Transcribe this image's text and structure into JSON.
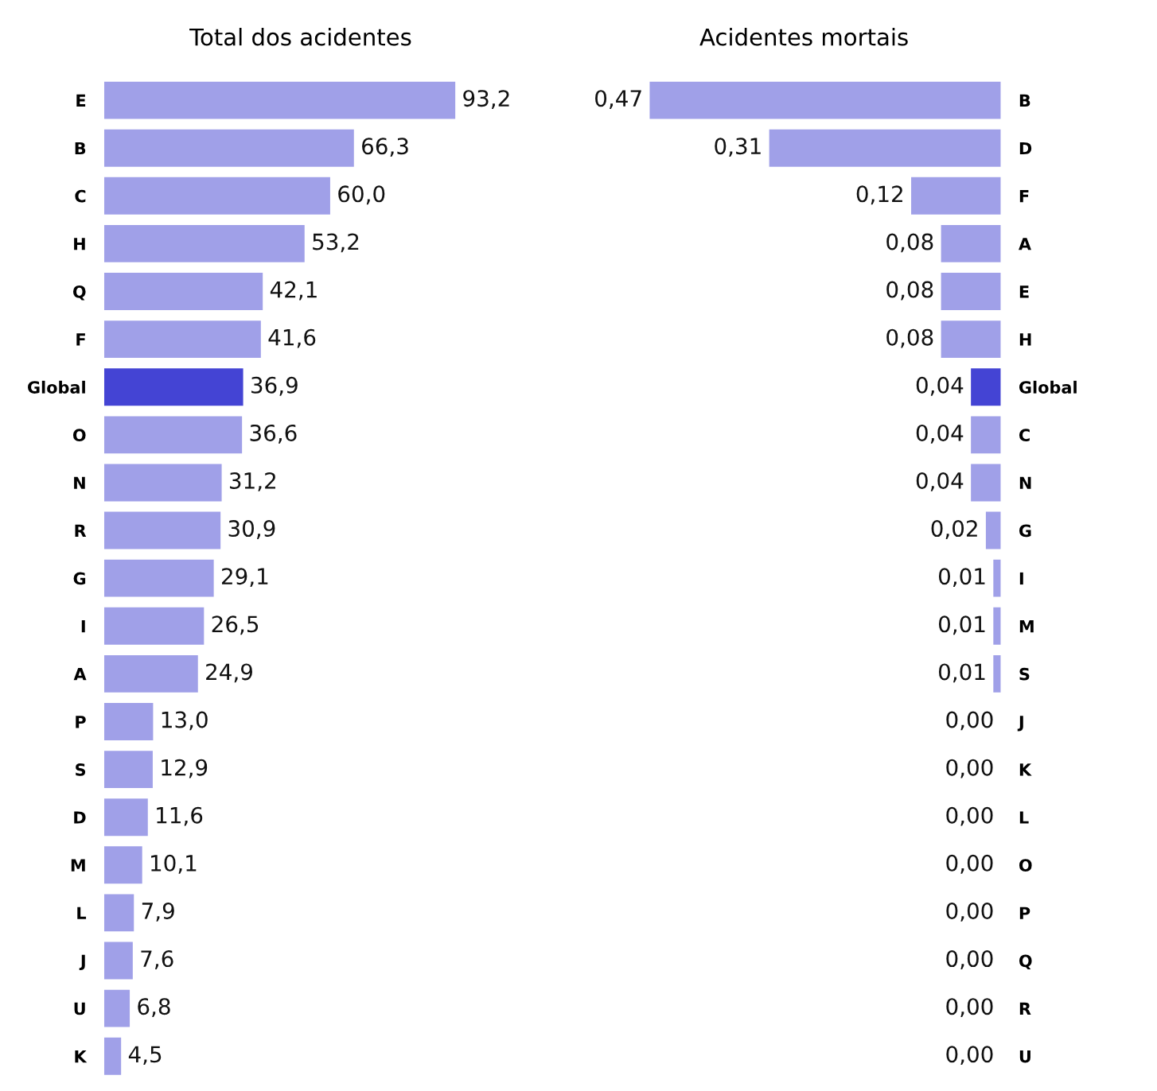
{
  "chart_data": [
    {
      "type": "bar",
      "orientation": "horizontal",
      "title": "Total dos acidentes",
      "categories": [
        "E",
        "B",
        "C",
        "H",
        "Q",
        "F",
        "Global",
        "O",
        "N",
        "R",
        "G",
        "I",
        "A",
        "P",
        "S",
        "D",
        "M",
        "L",
        "J",
        "U",
        "K"
      ],
      "values": [
        93.2,
        66.3,
        60.0,
        53.2,
        42.1,
        41.6,
        36.9,
        36.6,
        31.2,
        30.9,
        29.1,
        26.5,
        24.9,
        13.0,
        12.9,
        11.6,
        10.1,
        7.9,
        7.6,
        6.8,
        4.5
      ],
      "value_labels": [
        "93,2",
        "66,3",
        "60,0",
        "53,2",
        "42,1",
        "41,6",
        "36,9",
        "36,6",
        "31,2",
        "30,9",
        "29,1",
        "26,5",
        "24,9",
        "13,0",
        "12,9",
        "11,6",
        "10,1",
        "7,9",
        "7,6",
        "6,8",
        "4,5"
      ],
      "colors": [
        "#a0a0e8",
        "#a0a0e8",
        "#a0a0e8",
        "#a0a0e8",
        "#a0a0e8",
        "#a0a0e8",
        "#4444d4",
        "#a0a0e8",
        "#a0a0e8",
        "#a0a0e8",
        "#a0a0e8",
        "#a0a0e8",
        "#a0a0e8",
        "#a0a0e8",
        "#a0a0e8",
        "#a0a0e8",
        "#a0a0e8",
        "#a0a0e8",
        "#a0a0e8",
        "#a0a0e8",
        "#a0a0e8"
      ]
    },
    {
      "type": "bar",
      "orientation": "horizontal",
      "title": "Acidentes mortais",
      "categories": [
        "B",
        "D",
        "F",
        "A",
        "E",
        "H",
        "Global",
        "C",
        "N",
        "G",
        "I",
        "M",
        "S",
        "J",
        "K",
        "L",
        "O",
        "P",
        "Q",
        "R",
        "U"
      ],
      "values": [
        0.47,
        0.31,
        0.12,
        0.08,
        0.08,
        0.08,
        0.04,
        0.04,
        0.04,
        0.02,
        0.01,
        0.01,
        0.01,
        0.0,
        0.0,
        0.0,
        0.0,
        0.0,
        0.0,
        0.0,
        0.0
      ],
      "value_labels": [
        "0,47",
        "0,31",
        "0,12",
        "0,08",
        "0,08",
        "0,08",
        "0,04",
        "0,04",
        "0,04",
        "0,02",
        "0,01",
        "0,01",
        "0,01",
        "0,00",
        "0,00",
        "0,00",
        "0,00",
        "0,00",
        "0,00",
        "0,00",
        "0,00"
      ],
      "colors": [
        "#a0a0e8",
        "#a0a0e8",
        "#a0a0e8",
        "#a0a0e8",
        "#a0a0e8",
        "#a0a0e8",
        "#4444d4",
        "#a0a0e8",
        "#a0a0e8",
        "#a0a0e8",
        "#a0a0e8",
        "#a0a0e8",
        "#a0a0e8",
        "#a0a0e8",
        "#a0a0e8",
        "#a0a0e8",
        "#a0a0e8",
        "#a0a0e8",
        "#a0a0e8",
        "#a0a0e8",
        "#a0a0e8"
      ]
    }
  ]
}
